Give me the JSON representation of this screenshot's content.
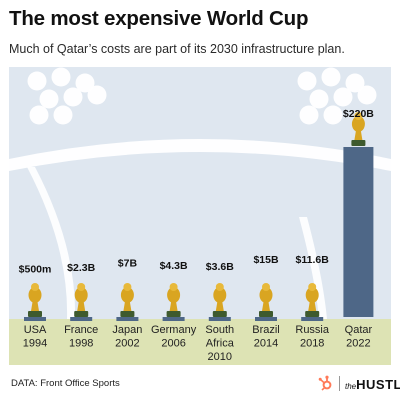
{
  "header": {
    "title": "The most expensive World Cup",
    "subtitle": "Much of Qatar’s costs are part of its 2030 infrastructure plan."
  },
  "footer": {
    "source": "DATA: Front Office Sports",
    "brand_prefix": "the",
    "brand_name": "HUSTLE"
  },
  "colors": {
    "bar": "#4e6787",
    "sky": "#dfe7f0",
    "grass": "#dde3b4",
    "trophy": "#d9a521"
  },
  "icons": [
    "trophy-icon",
    "hubspot-sprocket-icon"
  ],
  "chart_data": {
    "type": "bar",
    "title": "The most expensive World Cup",
    "subtitle": "Much of Qatar’s costs are part of its 2030 infrastructure plan.",
    "categories": [
      [
        "USA",
        "1994"
      ],
      [
        "France",
        "1998"
      ],
      [
        "Japan",
        "2002"
      ],
      [
        "Germany",
        "2006"
      ],
      [
        "South",
        "Africa",
        "2010"
      ],
      [
        "Brazil",
        "2014"
      ],
      [
        "Russia",
        "2018"
      ],
      [
        "Qatar",
        "2022"
      ]
    ],
    "values": [
      0.5,
      2.3,
      7,
      4.3,
      3.6,
      15,
      11.6,
      220
    ],
    "value_unit": "billion USD",
    "labels": [
      "$500m",
      "$2.3B",
      "$7B",
      "$4.3B",
      "$3.6B",
      "$15B",
      "$11.6B",
      "$220B"
    ],
    "ylim": [
      0,
      220
    ],
    "xlabel": "",
    "ylabel": "",
    "grid": false,
    "legend": "none"
  }
}
